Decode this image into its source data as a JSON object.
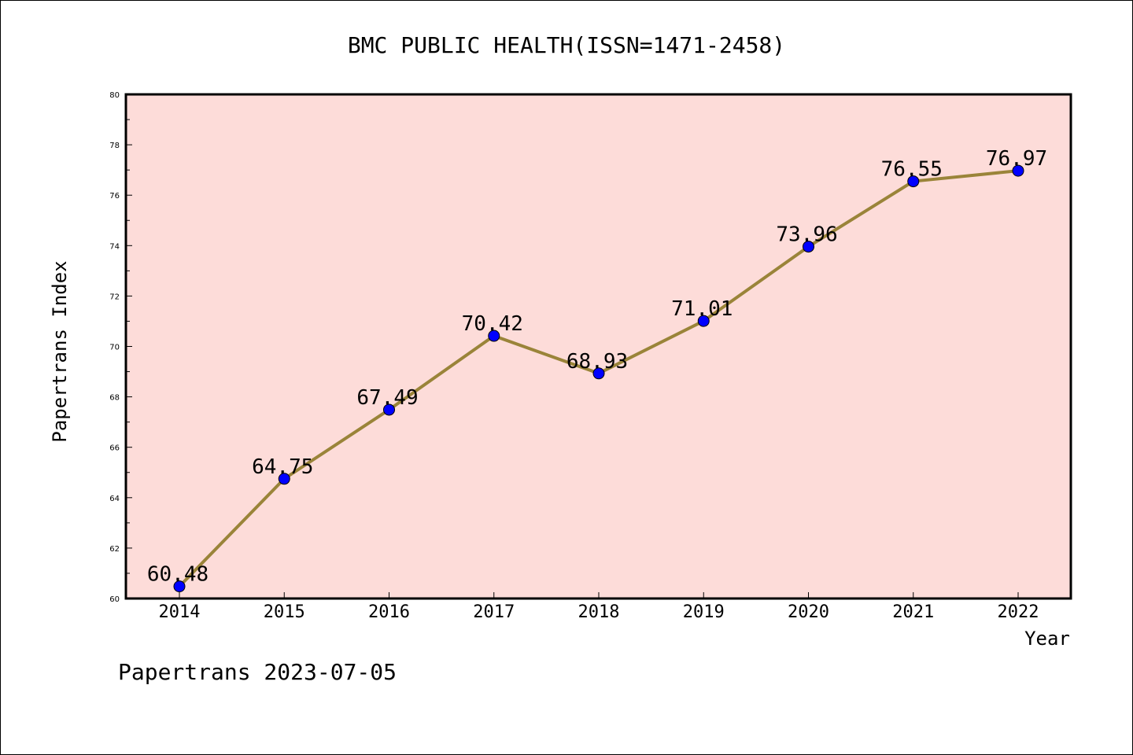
{
  "chart_data": {
    "type": "line",
    "title": "BMC PUBLIC HEALTH(ISSN=1471-2458)",
    "xlabel": "Year",
    "ylabel": "Papertrans Index",
    "categories": [
      "2014",
      "2015",
      "2016",
      "2017",
      "2018",
      "2019",
      "2020",
      "2021",
      "2022"
    ],
    "series": [
      {
        "values": [
          60.48,
          64.75,
          67.49,
          70.42,
          68.93,
          71.01,
          73.96,
          76.55,
          76.97
        ],
        "labels": [
          "60.48",
          "64.75",
          "67.49",
          "70.42",
          "68.93",
          "71.01",
          "73.96",
          "76.55",
          "76.97"
        ]
      }
    ],
    "ylim": [
      60,
      80
    ],
    "yticks": [
      "60",
      "62",
      "64",
      "66",
      "68",
      "70",
      "72",
      "74",
      "76",
      "78",
      "80"
    ],
    "grid": false,
    "colors": {
      "line": "#9a8439",
      "marker": "#0000ff",
      "plot_background": "#fddcd9"
    }
  },
  "footer": "Papertrans 2023-07-05"
}
